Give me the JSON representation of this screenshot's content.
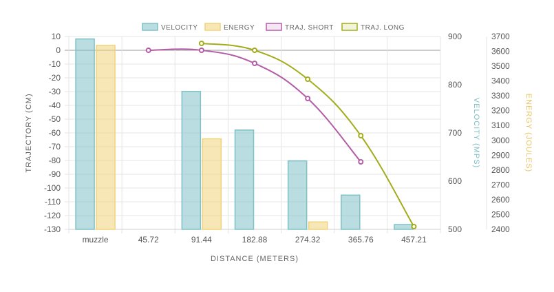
{
  "chart_data": {
    "type": "bar",
    "categories": [
      "muzzle",
      "45.72",
      "91.44",
      "182.88",
      "274.32",
      "365.76",
      "457.21"
    ],
    "xlabel": "DISTANCE (METERS)",
    "axes": {
      "trajectory": {
        "label": "TRAJECTORY (CM)",
        "range": [
          -130,
          10
        ],
        "ticks": [
          10,
          0,
          -10,
          -20,
          -30,
          -40,
          -50,
          -60,
          -70,
          -80,
          -90,
          -100,
          -110,
          -120,
          -130
        ],
        "position": "left"
      },
      "velocity": {
        "label": "VELOCITY (MPS)",
        "range": [
          500,
          900
        ],
        "ticks": [
          900,
          800,
          700,
          600,
          500
        ],
        "position": "right"
      },
      "energy": {
        "label": "ENERGY (JOULES)",
        "range": [
          2400,
          3700
        ],
        "ticks": [
          3700,
          3600,
          3500,
          3400,
          3300,
          3200,
          3100,
          3000,
          2900,
          2800,
          2700,
          2600,
          2500,
          2400
        ],
        "position": "right"
      }
    },
    "series": [
      {
        "name": "VELOCITY",
        "type": "bar",
        "axis": "velocity",
        "color": "#7fc1c6",
        "values": [
          895,
          null,
          786,
          706,
          642,
          571,
          510
        ]
      },
      {
        "name": "ENERGY",
        "type": "bar",
        "axis": "energy",
        "color": "#f0d47a",
        "values": [
          3640,
          null,
          3010,
          null,
          2450,
          null,
          null
        ]
      },
      {
        "name": "TRAJ. SHORT",
        "type": "line",
        "axis": "trajectory",
        "color": "#b35da8",
        "values": [
          null,
          0,
          0,
          -9.5,
          -35,
          -81,
          null
        ]
      },
      {
        "name": "TRAJ. LONG",
        "type": "line",
        "axis": "trajectory",
        "color": "#a3ad1c",
        "values": [
          null,
          null,
          5,
          0,
          -21,
          -62,
          -128
        ]
      }
    ],
    "legend_position": "top",
    "grid": true
  }
}
